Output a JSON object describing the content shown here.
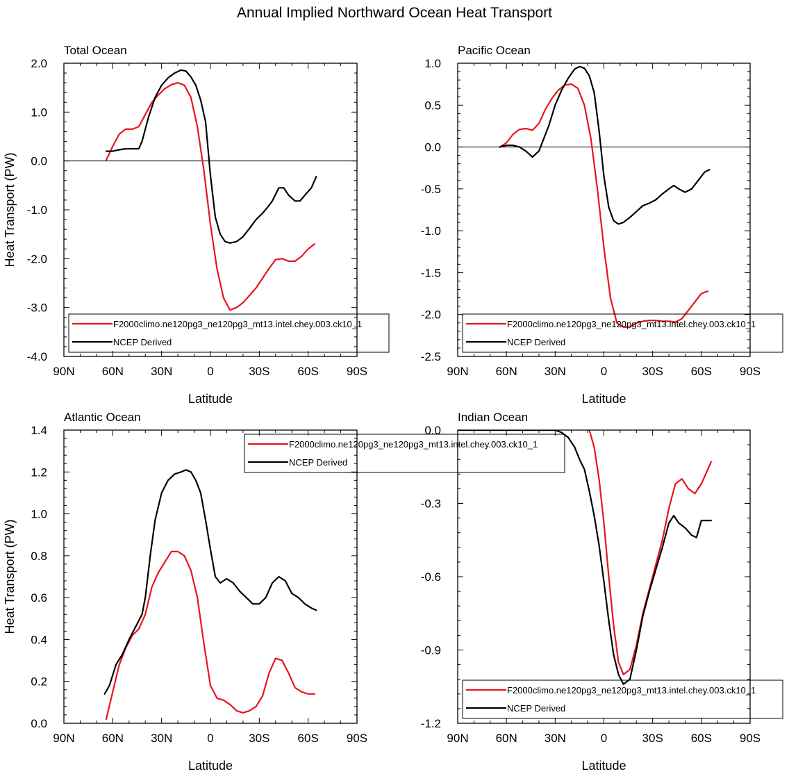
{
  "figure_title": "Annual Implied Northward Ocean Heat Transport",
  "colors": {
    "model": "#e8141c",
    "obs": "#000000",
    "zero": "#000000"
  },
  "chart_data": [
    {
      "type": "line",
      "title": "Total Ocean",
      "xlabel": "Latitude",
      "ylabel": "Heat Transport (PW)",
      "xlim": [
        -90,
        90
      ],
      "ylim": [
        -4.0,
        2.0
      ],
      "x_ticks": [
        -90,
        -60,
        -30,
        0,
        30,
        60,
        90
      ],
      "x_tick_labels": [
        "90N",
        "60N",
        "30N",
        "0",
        "30S",
        "60S",
        "90S"
      ],
      "y_ticks": [
        -4.0,
        -3.0,
        -2.0,
        -1.0,
        0.0,
        1.0,
        2.0
      ],
      "y_tick_labels": [
        "-4.0",
        "-3.0",
        "-2.0",
        "-1.0",
        "0.0",
        "1.0",
        "2.0"
      ],
      "legend": [
        "F2000climo.ne120pg3_ne120pg3_mt13.intel.chey.003.ck10_1",
        "NCEP Derived"
      ],
      "legend_position": "bottom",
      "series": [
        {
          "name": "F2000climo.ne120pg3_ne120pg3_mt13.intel.chey.003.ck10_1",
          "color": "#e8141c",
          "x": [
            -64,
            -60,
            -56,
            -52,
            -48,
            -44,
            -40,
            -36,
            -32,
            -28,
            -24,
            -20,
            -16,
            -12,
            -8,
            -4,
            0,
            4,
            8,
            12,
            16,
            20,
            24,
            28,
            32,
            36,
            40,
            44,
            48,
            52,
            56,
            60,
            64
          ],
          "y": [
            0.02,
            0.3,
            0.55,
            0.65,
            0.65,
            0.7,
            0.95,
            1.2,
            1.35,
            1.48,
            1.56,
            1.6,
            1.55,
            1.3,
            0.7,
            -0.2,
            -1.3,
            -2.2,
            -2.8,
            -3.05,
            -3.0,
            -2.9,
            -2.75,
            -2.6,
            -2.4,
            -2.2,
            -2.02,
            -2.0,
            -2.05,
            -2.05,
            -1.95,
            -1.8,
            -1.7
          ]
        },
        {
          "name": "NCEP Derived",
          "color": "#000000",
          "x": [
            -64,
            -60,
            -56,
            -52,
            -48,
            -44,
            -42,
            -38,
            -34,
            -30,
            -26,
            -22,
            -18,
            -15,
            -12,
            -9,
            -6,
            -3,
            0,
            3,
            6,
            9,
            12,
            16,
            20,
            24,
            28,
            32,
            35,
            38,
            42,
            45,
            48,
            52,
            55,
            58,
            62,
            65
          ],
          "y": [
            0.2,
            0.2,
            0.23,
            0.25,
            0.25,
            0.25,
            0.4,
            0.9,
            1.3,
            1.55,
            1.7,
            1.8,
            1.86,
            1.84,
            1.72,
            1.55,
            1.25,
            0.8,
            -0.3,
            -1.15,
            -1.5,
            -1.65,
            -1.68,
            -1.65,
            -1.55,
            -1.38,
            -1.2,
            -1.07,
            -0.95,
            -0.82,
            -0.55,
            -0.55,
            -0.7,
            -0.82,
            -0.82,
            -0.7,
            -0.55,
            -0.32
          ]
        }
      ]
    },
    {
      "type": "line",
      "title": "Pacific Ocean",
      "xlabel": "Latitude",
      "ylabel": "",
      "xlim": [
        -90,
        90
      ],
      "ylim": [
        -2.5,
        1.0
      ],
      "x_ticks": [
        -90,
        -60,
        -30,
        0,
        30,
        60,
        90
      ],
      "x_tick_labels": [
        "90N",
        "60N",
        "30N",
        "0",
        "30S",
        "60S",
        "90S"
      ],
      "y_ticks": [
        -2.5,
        -2.0,
        -1.5,
        -1.0,
        -0.5,
        0.0,
        0.5,
        1.0
      ],
      "y_tick_labels": [
        "-2.5",
        "-2.0",
        "-1.5",
        "-1.0",
        "-0.5",
        "0.0",
        "0.5",
        "1.0"
      ],
      "legend": [
        "F2000climo.ne120pg3_ne120pg3_mt13.intel.chey.003.ck10_1",
        "NCEP Derived"
      ],
      "legend_position": "bottom",
      "series": [
        {
          "name": "F2000climo.ne120pg3_ne120pg3_mt13.intel.chey.003.ck10_1",
          "color": "#e8141c",
          "x": [
            -64,
            -60,
            -56,
            -52,
            -48,
            -44,
            -40,
            -36,
            -32,
            -28,
            -24,
            -20,
            -16,
            -12,
            -8,
            -4,
            0,
            4,
            8,
            12,
            16,
            20,
            24,
            28,
            32,
            36,
            40,
            44,
            48,
            52,
            56,
            60,
            64
          ],
          "y": [
            0.0,
            0.05,
            0.15,
            0.21,
            0.22,
            0.2,
            0.28,
            0.45,
            0.58,
            0.68,
            0.74,
            0.75,
            0.7,
            0.5,
            0.1,
            -0.5,
            -1.2,
            -1.8,
            -2.1,
            -2.15,
            -2.15,
            -2.1,
            -2.08,
            -2.07,
            -2.07,
            -2.08,
            -2.08,
            -2.09,
            -2.05,
            -1.95,
            -1.85,
            -1.75,
            -1.72
          ]
        },
        {
          "name": "NCEP Derived",
          "color": "#000000",
          "x": [
            -64,
            -60,
            -56,
            -52,
            -48,
            -44,
            -40,
            -38,
            -34,
            -30,
            -26,
            -22,
            -18,
            -15,
            -12,
            -9,
            -6,
            -3,
            0,
            3,
            6,
            9,
            12,
            16,
            20,
            24,
            28,
            32,
            36,
            40,
            43,
            46,
            50,
            54,
            58,
            62,
            65
          ],
          "y": [
            0.0,
            0.02,
            0.02,
            0.0,
            -0.05,
            -0.12,
            -0.05,
            0.05,
            0.25,
            0.5,
            0.68,
            0.82,
            0.93,
            0.96,
            0.94,
            0.85,
            0.65,
            0.2,
            -0.35,
            -0.72,
            -0.88,
            -0.92,
            -0.9,
            -0.84,
            -0.77,
            -0.7,
            -0.67,
            -0.63,
            -0.56,
            -0.5,
            -0.46,
            -0.5,
            -0.54,
            -0.5,
            -0.4,
            -0.3,
            -0.27
          ]
        }
      ]
    },
    {
      "type": "line",
      "title": "Atlantic Ocean",
      "xlabel": "Latitude",
      "ylabel": "Heat Transport (PW)",
      "xlim": [
        -90,
        90
      ],
      "ylim": [
        0.0,
        1.4
      ],
      "x_ticks": [
        -90,
        -60,
        -30,
        0,
        30,
        60,
        90
      ],
      "x_tick_labels": [
        "90N",
        "60N",
        "30N",
        "0",
        "30S",
        "60S",
        "90S"
      ],
      "y_ticks": [
        0.0,
        0.2,
        0.4,
        0.6,
        0.8,
        1.0,
        1.2,
        1.4
      ],
      "y_tick_labels": [
        "0.0",
        "0.2",
        "0.4",
        "0.6",
        "0.8",
        "1.0",
        "1.2",
        "1.4"
      ],
      "legend": [
        "F2000climo.ne120pg3_ne120pg3_mt13.intel.chey.003.ck10_1",
        "NCEP Derived"
      ],
      "legend_position": "top-right",
      "series": [
        {
          "name": "F2000climo.ne120pg3_ne120pg3_mt13.intel.chey.003.ck10_1",
          "color": "#e8141c",
          "x": [
            -64,
            -60,
            -56,
            -52,
            -48,
            -44,
            -40,
            -36,
            -32,
            -28,
            -24,
            -20,
            -16,
            -12,
            -8,
            -4,
            0,
            4,
            8,
            12,
            16,
            20,
            24,
            28,
            32,
            36,
            40,
            44,
            48,
            52,
            56,
            60,
            64
          ],
          "y": [
            0.02,
            0.15,
            0.28,
            0.36,
            0.42,
            0.45,
            0.52,
            0.65,
            0.72,
            0.77,
            0.82,
            0.82,
            0.8,
            0.73,
            0.6,
            0.38,
            0.18,
            0.12,
            0.11,
            0.09,
            0.06,
            0.05,
            0.06,
            0.08,
            0.13,
            0.24,
            0.31,
            0.3,
            0.24,
            0.17,
            0.15,
            0.14,
            0.14
          ]
        },
        {
          "name": "NCEP Derived",
          "color": "#000000",
          "x": [
            -65,
            -62,
            -58,
            -54,
            -50,
            -46,
            -42,
            -40,
            -37,
            -34,
            -30,
            -26,
            -22,
            -18,
            -15,
            -12,
            -9,
            -6,
            -3,
            0,
            3,
            6,
            10,
            14,
            18,
            22,
            26,
            30,
            34,
            38,
            42,
            46,
            50,
            54,
            58,
            62,
            65
          ],
          "y": [
            0.14,
            0.18,
            0.28,
            0.33,
            0.4,
            0.46,
            0.52,
            0.6,
            0.8,
            0.97,
            1.1,
            1.16,
            1.19,
            1.2,
            1.21,
            1.2,
            1.16,
            1.1,
            0.97,
            0.83,
            0.7,
            0.67,
            0.69,
            0.67,
            0.63,
            0.6,
            0.57,
            0.57,
            0.6,
            0.67,
            0.7,
            0.68,
            0.62,
            0.6,
            0.57,
            0.55,
            0.54
          ]
        }
      ]
    },
    {
      "type": "line",
      "title": "Indian Ocean",
      "xlabel": "Latitude",
      "ylabel": "",
      "xlim": [
        -90,
        90
      ],
      "ylim": [
        -1.2,
        0.0
      ],
      "x_ticks": [
        -90,
        -60,
        -30,
        0,
        30,
        60,
        90
      ],
      "x_tick_labels": [
        "90N",
        "60N",
        "30N",
        "0",
        "30S",
        "60S",
        "90S"
      ],
      "y_ticks": [
        -1.2,
        -0.9,
        -0.6,
        -0.3,
        0.0
      ],
      "y_tick_labels": [
        "-1.2",
        "-0.9",
        "-0.6",
        "-0.3",
        "0.0"
      ],
      "legend": [
        "F2000climo.ne120pg3_ne120pg3_mt13.intel.chey.003.ck10_1",
        "NCEP Derived"
      ],
      "legend_position": "bottom",
      "series": [
        {
          "name": "F2000climo.ne120pg3_ne120pg3_mt13.intel.chey.003.ck10_1",
          "color": "#e8141c",
          "x": [
            -90,
            -30,
            -26,
            -22,
            -18,
            -15,
            -12,
            -9,
            -6,
            -3,
            0,
            3,
            6,
            9,
            12,
            16,
            20,
            24,
            28,
            32,
            36,
            40,
            44,
            48,
            52,
            56,
            60,
            64,
            66
          ],
          "y": [
            0.0,
            0.0,
            0.005,
            0.02,
            0.035,
            0.04,
            0.03,
            0.0,
            -0.07,
            -0.2,
            -0.38,
            -0.6,
            -0.8,
            -0.95,
            -1.0,
            -0.98,
            -0.88,
            -0.75,
            -0.65,
            -0.55,
            -0.45,
            -0.32,
            -0.22,
            -0.2,
            -0.24,
            -0.26,
            -0.22,
            -0.16,
            -0.13
          ]
        },
        {
          "name": "NCEP Derived",
          "color": "#000000",
          "x": [
            -90,
            -30,
            -26,
            -22,
            -18,
            -15,
            -12,
            -9,
            -6,
            -3,
            0,
            3,
            6,
            9,
            12,
            16,
            20,
            24,
            28,
            32,
            36,
            40,
            43,
            46,
            50,
            54,
            57,
            60,
            63,
            66
          ],
          "y": [
            0.0,
            0.0,
            -0.01,
            -0.03,
            -0.07,
            -0.12,
            -0.16,
            -0.25,
            -0.35,
            -0.47,
            -0.62,
            -0.78,
            -0.92,
            -1.0,
            -1.04,
            -1.02,
            -0.9,
            -0.76,
            -0.66,
            -0.57,
            -0.48,
            -0.38,
            -0.35,
            -0.38,
            -0.4,
            -0.43,
            -0.44,
            -0.37,
            -0.37,
            -0.37
          ]
        }
      ]
    }
  ]
}
